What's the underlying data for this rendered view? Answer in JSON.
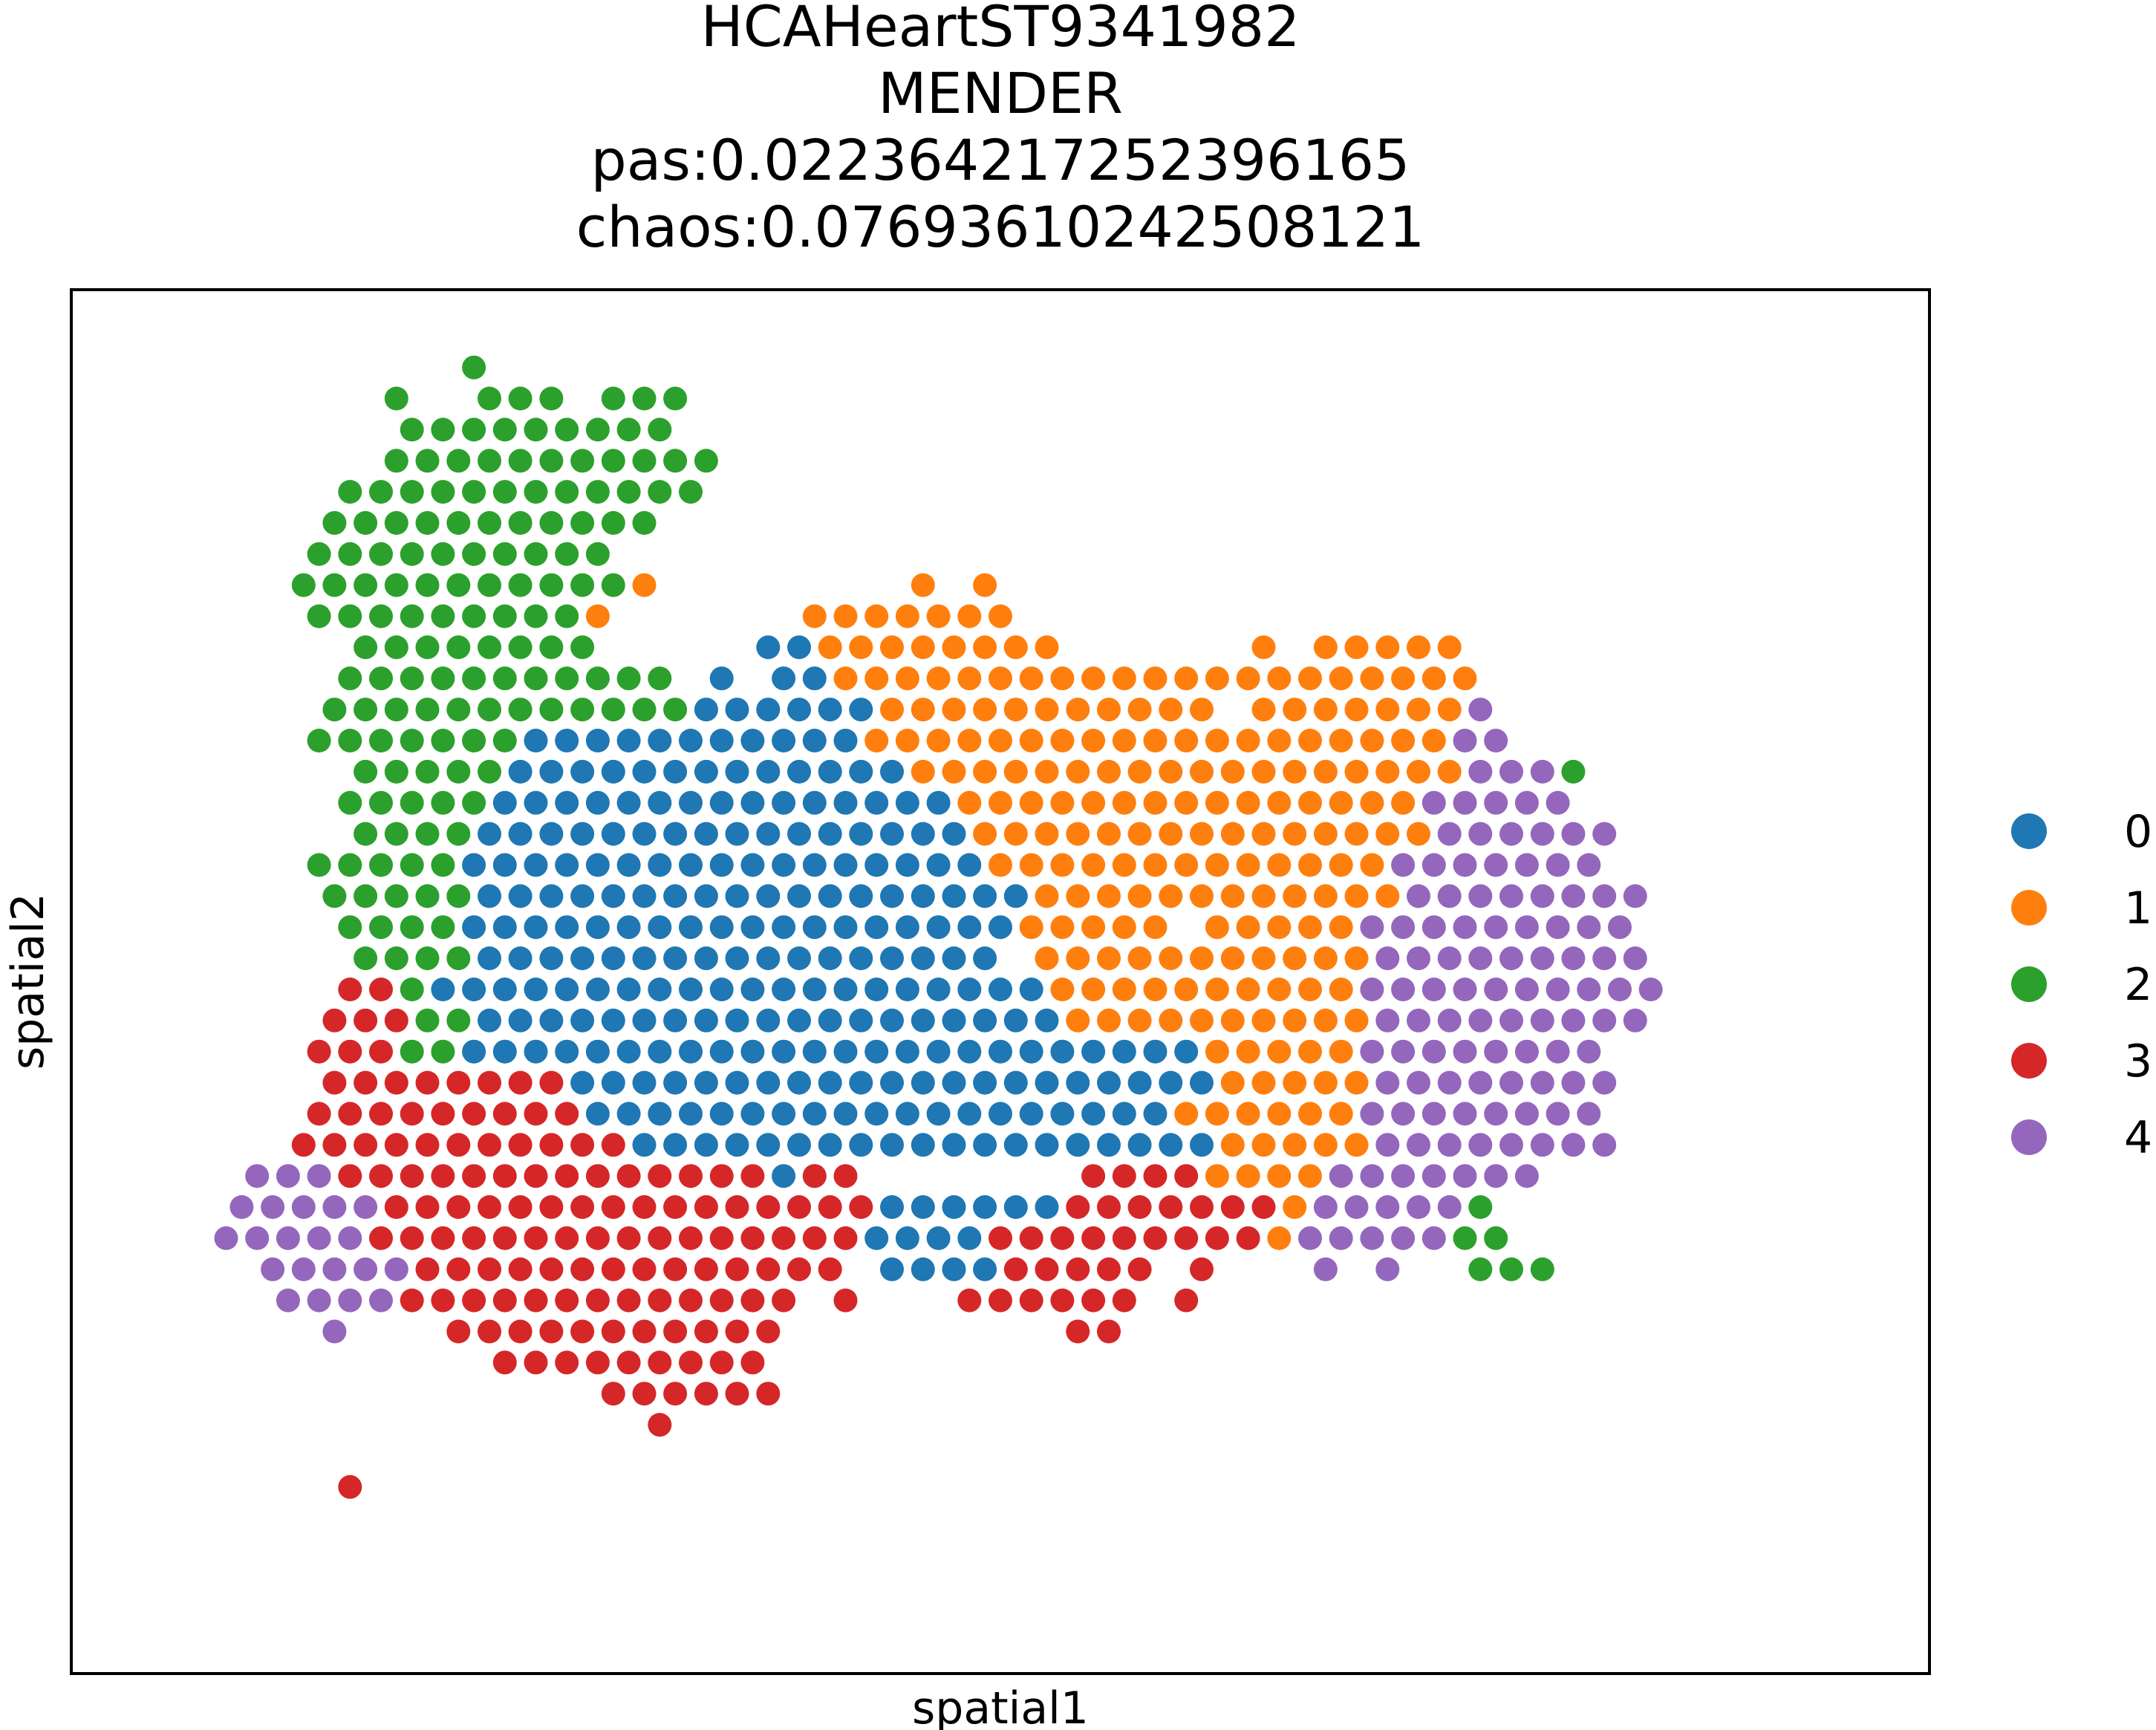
{
  "chart_data": {
    "type": "scatter",
    "title_lines": [
      "HCAHeartST9341982",
      "MENDER",
      "pas:0.022364217252396165",
      "chaos:0.07693610242508121"
    ],
    "xlabel": "spatial1",
    "ylabel": "spatial2",
    "grid": false,
    "legend_position": "right",
    "x_range": [
      -1,
      59
    ],
    "y_range": [
      -2,
      42.5
    ],
    "clusters": [
      {
        "name": "0",
        "color": "#1f77b4"
      },
      {
        "name": "1",
        "color": "#ff7f0e"
      },
      {
        "name": "2",
        "color": "#2ca02c"
      },
      {
        "name": "3",
        "color": "#d62728"
      },
      {
        "name": "4",
        "color": "#9467bd"
      }
    ],
    "points_by_row": [
      {
        "y": 40,
        "s": [
          [
            12,
            12,
            2
          ],
          [
            14,
            2,
            2
          ]
        ]
      },
      {
        "y": 39,
        "s": [
          [
            9,
            9,
            2
          ],
          [
            12,
            14,
            2
          ],
          [
            16,
            18,
            2
          ]
        ]
      },
      {
        "y": 38,
        "s": [
          [
            10,
            18,
            2
          ]
        ]
      },
      {
        "y": 37,
        "s": [
          [
            9,
            19,
            2
          ]
        ]
      },
      {
        "y": 36,
        "s": [
          [
            8,
            18,
            2
          ],
          [
            19,
            19,
            2
          ]
        ]
      },
      {
        "y": 35,
        "s": [
          [
            7,
            17,
            2
          ]
        ]
      },
      {
        "y": 34,
        "s": [
          [
            7,
            16,
            2
          ]
        ]
      },
      {
        "y": 33,
        "s": [
          [
            6,
            16,
            2
          ],
          [
            17,
            17,
            1
          ],
          [
            26,
            26,
            1
          ],
          [
            28,
            28,
            1
          ]
        ]
      },
      {
        "y": 32,
        "s": [
          [
            7,
            15,
            2
          ],
          [
            16,
            16,
            1
          ],
          [
            23,
            29,
            1
          ]
        ]
      },
      {
        "y": 31,
        "s": [
          [
            8,
            15,
            2
          ],
          [
            21,
            22,
            0
          ],
          [
            23,
            30,
            1
          ],
          [
            37,
            37,
            1
          ],
          [
            39,
            43,
            1
          ]
        ]
      },
      {
        "y": 30,
        "s": [
          [
            8,
            18,
            2
          ],
          [
            20,
            20,
            0
          ],
          [
            22,
            23,
            0
          ],
          [
            24,
            34,
            1
          ],
          [
            35,
            41,
            1
          ],
          [
            42,
            44,
            1
          ]
        ]
      },
      {
        "y": 29,
        "s": [
          [
            7,
            18,
            2
          ],
          [
            19,
            24,
            0
          ],
          [
            25,
            35,
            1
          ],
          [
            37,
            42,
            1
          ],
          [
            43,
            43,
            1
          ],
          [
            44,
            44,
            4
          ]
        ]
      },
      {
        "y": 28,
        "s": [
          [
            7,
            13,
            2
          ],
          [
            14,
            24,
            0
          ],
          [
            25,
            43,
            1
          ],
          [
            44,
            45,
            4
          ]
        ]
      },
      {
        "y": 27,
        "s": [
          [
            8,
            12,
            2
          ],
          [
            13,
            25,
            0
          ],
          [
            26,
            43,
            1
          ],
          [
            44,
            46,
            4
          ],
          [
            47,
            47,
            2
          ]
        ]
      },
      {
        "y": 26,
        "s": [
          [
            8,
            12,
            2
          ],
          [
            13,
            27,
            0
          ],
          [
            28,
            42,
            1
          ],
          [
            43,
            47,
            4
          ]
        ]
      },
      {
        "y": 25,
        "s": [
          [
            8,
            11,
            2
          ],
          [
            12,
            27,
            0
          ],
          [
            28,
            42,
            1
          ],
          [
            43,
            48,
            4
          ]
        ]
      },
      {
        "y": 24,
        "s": [
          [
            7,
            11,
            2
          ],
          [
            12,
            28,
            0
          ],
          [
            29,
            41,
            1
          ],
          [
            42,
            48,
            4
          ]
        ]
      },
      {
        "y": 23,
        "s": [
          [
            7,
            11,
            2
          ],
          [
            12,
            29,
            0
          ],
          [
            30,
            41,
            1
          ],
          [
            42,
            49,
            4
          ]
        ]
      },
      {
        "y": 22,
        "s": [
          [
            8,
            11,
            2
          ],
          [
            12,
            29,
            0
          ],
          [
            30,
            34,
            1
          ],
          [
            36,
            40,
            1
          ],
          [
            41,
            49,
            4
          ]
        ]
      },
      {
        "y": 21,
        "s": [
          [
            8,
            11,
            2
          ],
          [
            12,
            28,
            0
          ],
          [
            30,
            40,
            1
          ],
          [
            41,
            49,
            4
          ]
        ]
      },
      {
        "y": 20,
        "s": [
          [
            8,
            9,
            3
          ],
          [
            10,
            10,
            2
          ],
          [
            11,
            30,
            0
          ],
          [
            31,
            40,
            1
          ],
          [
            41,
            50,
            4
          ]
        ]
      },
      {
        "y": 19,
        "s": [
          [
            7,
            9,
            3
          ],
          [
            10,
            11,
            2
          ],
          [
            12,
            30,
            0
          ],
          [
            31,
            40,
            1
          ],
          [
            41,
            49,
            4
          ]
        ]
      },
      {
        "y": 18,
        "s": [
          [
            7,
            9,
            3
          ],
          [
            10,
            11,
            2
          ],
          [
            12,
            35,
            0
          ],
          [
            36,
            40,
            1
          ],
          [
            41,
            48,
            4
          ]
        ]
      },
      {
        "y": 17,
        "s": [
          [
            7,
            14,
            3
          ],
          [
            15,
            35,
            0
          ],
          [
            36,
            40,
            1
          ],
          [
            41,
            48,
            4
          ]
        ]
      },
      {
        "y": 16,
        "s": [
          [
            7,
            15,
            3
          ],
          [
            16,
            34,
            0
          ],
          [
            35,
            40,
            1
          ],
          [
            41,
            48,
            4
          ]
        ]
      },
      {
        "y": 15,
        "s": [
          [
            6,
            16,
            3
          ],
          [
            17,
            35,
            0
          ],
          [
            36,
            40,
            1
          ],
          [
            41,
            48,
            4
          ]
        ]
      },
      {
        "y": 14,
        "s": [
          [
            5,
            7,
            4
          ],
          [
            8,
            21,
            3
          ],
          [
            22,
            23,
            0
          ],
          [
            23,
            24,
            3
          ],
          [
            32,
            35,
            3
          ],
          [
            36,
            39,
            1
          ],
          [
            40,
            44,
            4
          ],
          [
            45,
            46,
            4
          ]
        ]
      },
      {
        "y": 13,
        "s": [
          [
            4,
            8,
            4
          ],
          [
            9,
            24,
            3
          ],
          [
            25,
            30,
            0
          ],
          [
            31,
            37,
            3
          ],
          [
            38,
            38,
            1
          ],
          [
            39,
            43,
            4
          ],
          [
            44,
            44,
            2
          ]
        ]
      },
      {
        "y": 12,
        "s": [
          [
            4,
            8,
            4
          ],
          [
            9,
            24,
            3
          ],
          [
            25,
            28,
            0
          ],
          [
            29,
            37,
            3
          ],
          [
            38,
            38,
            1
          ],
          [
            39,
            43,
            4
          ],
          [
            44,
            45,
            2
          ]
        ]
      },
      {
        "y": 11,
        "s": [
          [
            5,
            9,
            4
          ],
          [
            10,
            23,
            3
          ],
          [
            25,
            28,
            0
          ],
          [
            29,
            33,
            3
          ],
          [
            35,
            35,
            3
          ],
          [
            39,
            39,
            4
          ],
          [
            41,
            41,
            4
          ],
          [
            44,
            46,
            2
          ]
        ]
      },
      {
        "y": 10,
        "s": [
          [
            6,
            9,
            4
          ],
          [
            10,
            22,
            3
          ],
          [
            24,
            24,
            3
          ],
          [
            28,
            33,
            3
          ],
          [
            35,
            35,
            3
          ]
        ]
      },
      {
        "y": 9,
        "s": [
          [
            7,
            7,
            4
          ],
          [
            11,
            21,
            3
          ],
          [
            31,
            32,
            3
          ]
        ]
      },
      {
        "y": 8,
        "s": [
          [
            13,
            21,
            3
          ]
        ]
      },
      {
        "y": 7,
        "s": [
          [
            16,
            21,
            3
          ]
        ]
      },
      {
        "y": 6,
        "s": [
          [
            18,
            18,
            3
          ]
        ]
      },
      {
        "y": 5,
        "s": []
      },
      {
        "y": 4,
        "s": [
          [
            8,
            8,
            3
          ]
        ]
      }
    ]
  }
}
